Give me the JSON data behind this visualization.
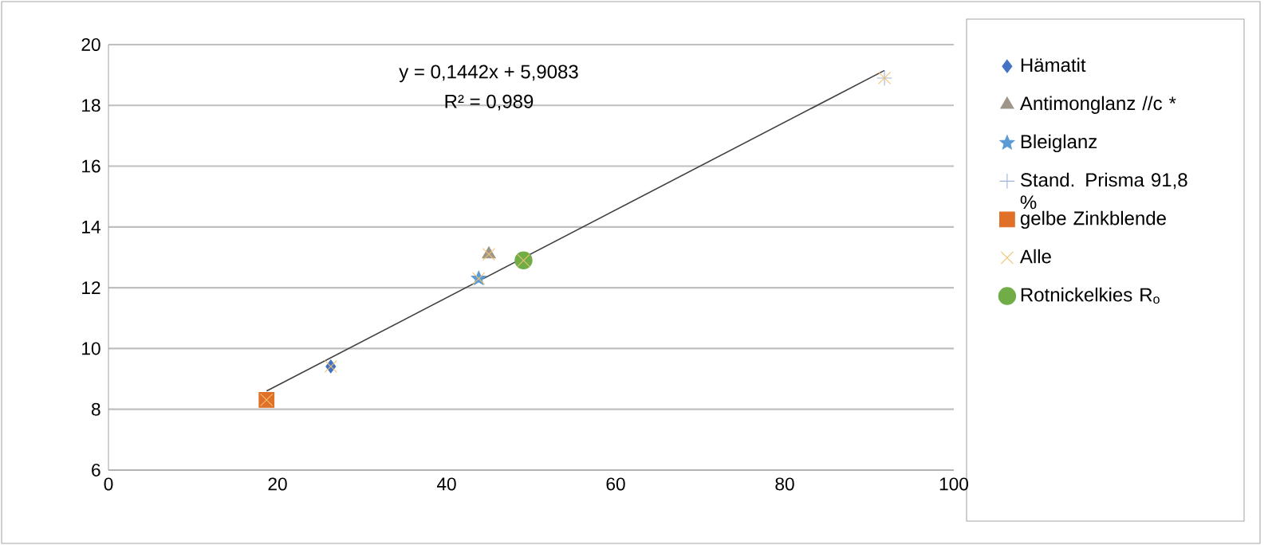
{
  "chart_data": {
    "type": "scatter",
    "annotations": [
      "y = 0,1442x + 5,9083",
      "R² = 0,989"
    ],
    "xlim": [
      0,
      100
    ],
    "xticks": [
      0,
      20,
      40,
      60,
      80,
      100
    ],
    "ylim": [
      6,
      20
    ],
    "yticks": [
      6,
      8,
      10,
      12,
      14,
      16,
      18,
      20
    ],
    "grid": "y",
    "legend": "right",
    "series": [
      {
        "name": "Hämatit",
        "color": "#4472c4",
        "marker": "diamond",
        "x": [
          26.3
        ],
        "values": [
          9.41
        ]
      },
      {
        "name": "Antimonglanz //c *",
        "color": "#9e9588",
        "marker": "triangle",
        "x": [
          45.0
        ],
        "values": [
          13.1
        ]
      },
      {
        "name": "Bleiglanz",
        "color": "#5b9bd5",
        "marker": "star",
        "x": [
          43.8
        ],
        "values": [
          12.3
        ]
      },
      {
        "name": "Stand. Prisma 91,8 %",
        "color": "#9db3d6",
        "marker": "plus",
        "x": [
          91.8
        ],
        "values": [
          18.9
        ]
      },
      {
        "name": "gelbe Zinkblende",
        "color": "#e07028",
        "marker": "square",
        "x": [
          18.7
        ],
        "values": [
          8.31
        ]
      },
      {
        "name": "Alle",
        "color": "#f0c070",
        "marker": "cross",
        "x": [
          18.7,
          26.3,
          43.8,
          45.0,
          49.1,
          91.8
        ],
        "values": [
          8.31,
          9.41,
          12.3,
          13.1,
          12.9,
          18.9
        ]
      },
      {
        "name": "Rotnickelkies R$_{o}$",
        "color": "#70ad47",
        "marker": "circle",
        "x": [
          49.1
        ],
        "values": [
          12.9
        ]
      },
      {
        "type": "line",
        "color": "#404040",
        "marker": "none",
        "x": [
          18.7,
          91.8
        ],
        "values": [
          8.6,
          19.15
        ]
      }
    ]
  }
}
